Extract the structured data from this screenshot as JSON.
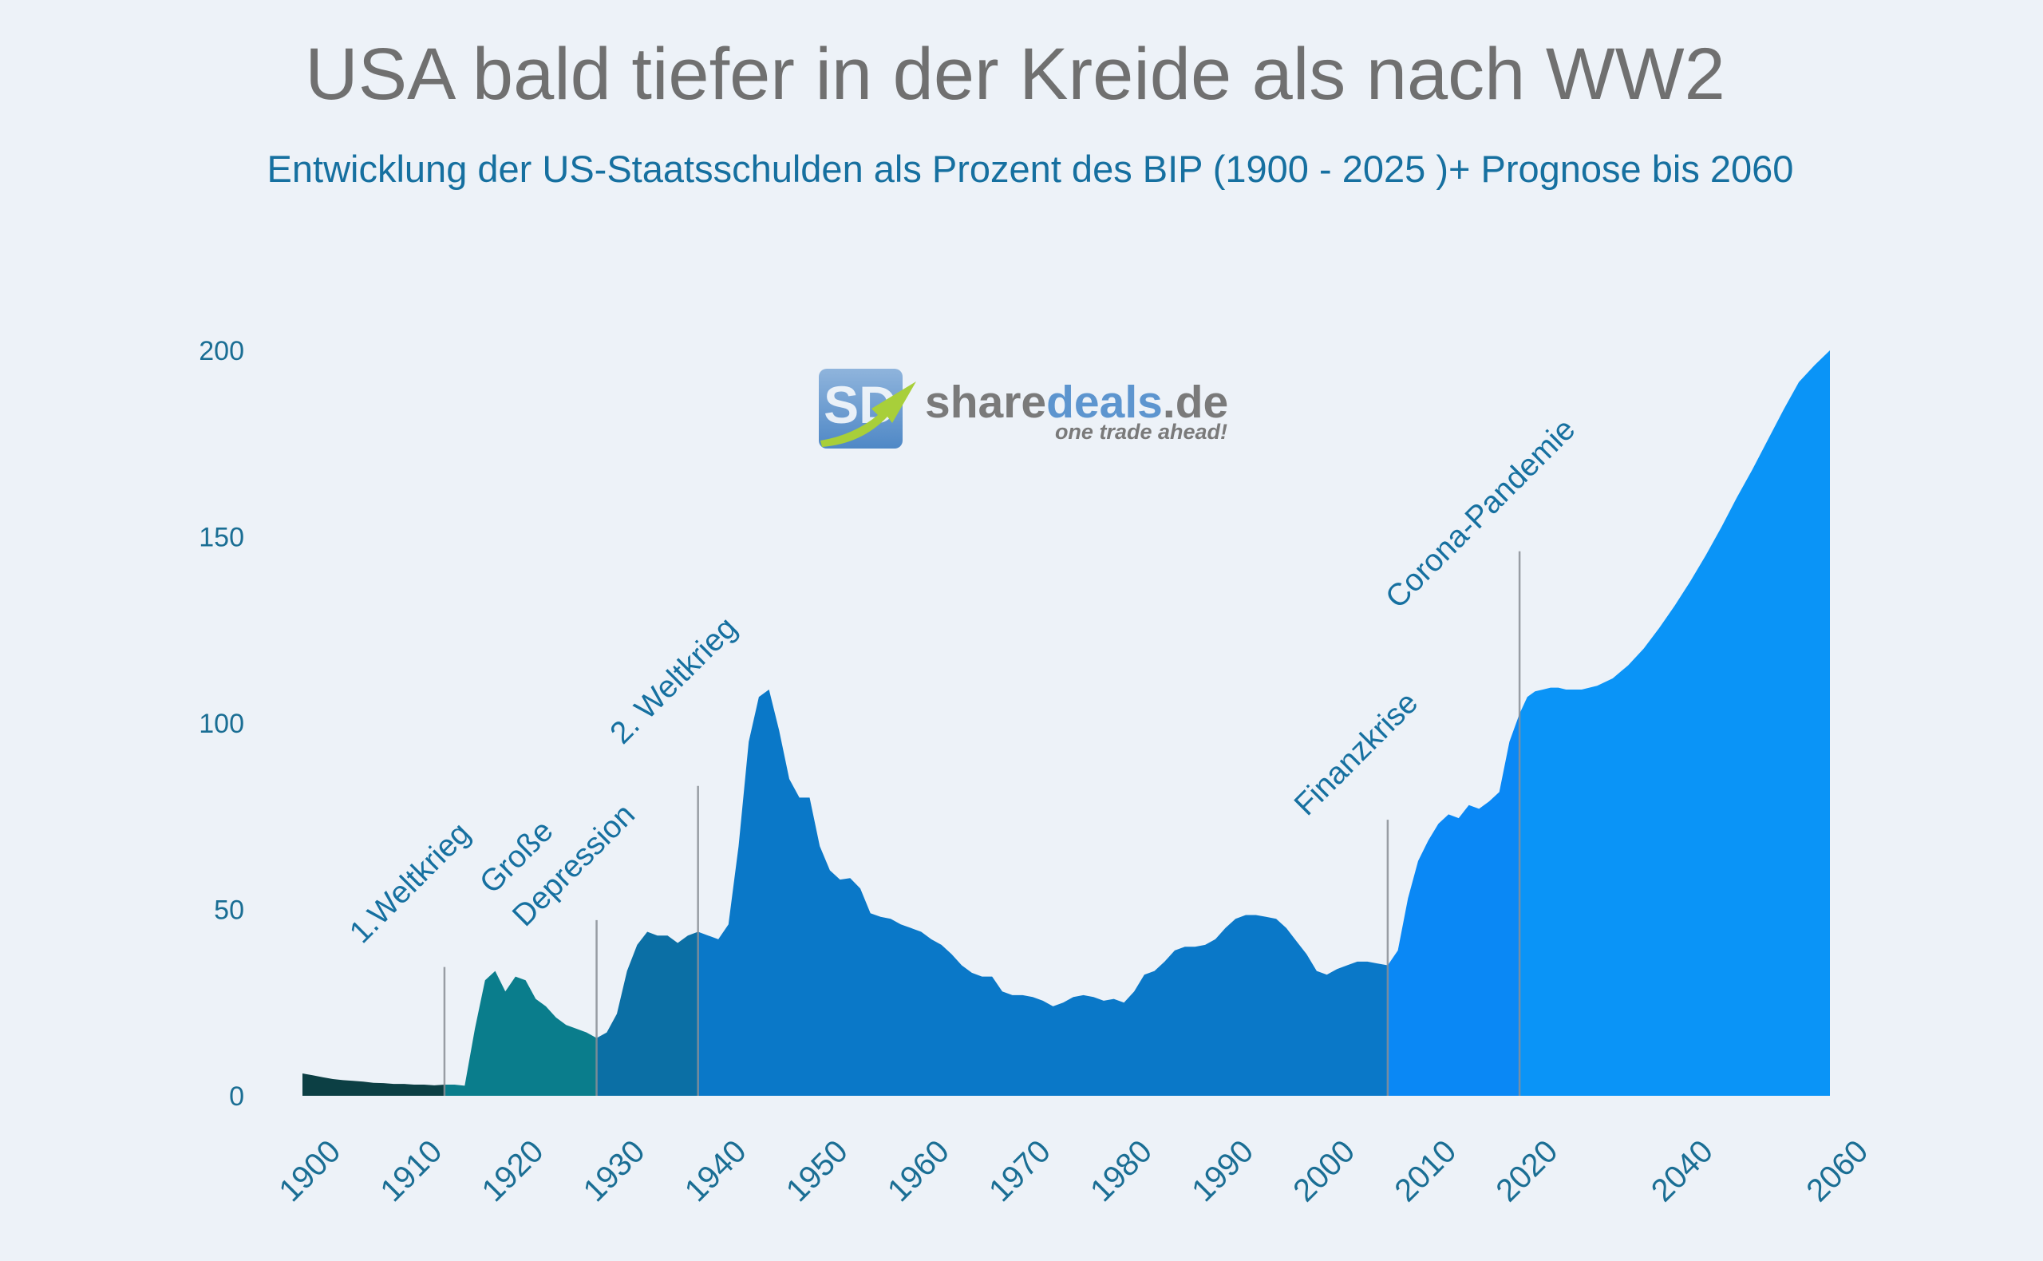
{
  "chart_data": {
    "type": "area",
    "title": "USA bald tiefer in der Kreide als nach WW2",
    "subtitle": "Entwicklung der US-Staatsschulden als Prozent des BIP (1900 - 2025 )+ Prognose bis 2060",
    "watermark": {
      "logo": "SD",
      "parts": [
        "share",
        "deals",
        ".de"
      ],
      "slogan": "one trade ahead!"
    },
    "x": [
      1900,
      1901,
      1902,
      1903,
      1904,
      1905,
      1906,
      1907,
      1908,
      1909,
      1910,
      1911,
      1912,
      1913,
      1914,
      1915,
      1916,
      1917,
      1918,
      1919,
      1920,
      1921,
      1922,
      1923,
      1924,
      1925,
      1926,
      1927,
      1928,
      1929,
      1930,
      1931,
      1932,
      1933,
      1934,
      1935,
      1936,
      1937,
      1938,
      1939,
      1940,
      1941,
      1942,
      1943,
      1944,
      1945,
      1946,
      1947,
      1948,
      1949,
      1950,
      1951,
      1952,
      1953,
      1954,
      1955,
      1956,
      1957,
      1958,
      1959,
      1960,
      1961,
      1962,
      1963,
      1964,
      1965,
      1966,
      1967,
      1968,
      1969,
      1970,
      1971,
      1972,
      1973,
      1974,
      1975,
      1976,
      1977,
      1978,
      1979,
      1980,
      1981,
      1982,
      1983,
      1984,
      1985,
      1986,
      1987,
      1988,
      1989,
      1990,
      1991,
      1992,
      1993,
      1994,
      1995,
      1996,
      1997,
      1998,
      1999,
      2000,
      2001,
      2002,
      2003,
      2004,
      2005,
      2006,
      2007,
      2008,
      2009,
      2010,
      2011,
      2012,
      2013,
      2014,
      2015,
      2016,
      2017,
      2018,
      2019,
      2020,
      2021,
      2022,
      2023,
      2024,
      2025,
      2026,
      2027,
      2028,
      2029,
      2030,
      2032,
      2034,
      2036,
      2038,
      2040,
      2042,
      2044,
      2046,
      2048,
      2050,
      2052,
      2054,
      2056,
      2058,
      2060
    ],
    "series": [
      {
        "colors": [
          "#0c3f44",
          "#0a7d8c",
          "#0b6fa5",
          "#0a78c8",
          "#0a88f5",
          "#0a94f7"
        ],
        "values": [
          6,
          5.5,
          5,
          4.5,
          4.2,
          4,
          3.8,
          3.5,
          3.4,
          3.2,
          3.2,
          3,
          3,
          2.8,
          3,
          3,
          2.7,
          18,
          31,
          33.5,
          28,
          32,
          31,
          26,
          24,
          21,
          19,
          18,
          17,
          15.5,
          17,
          22,
          33.5,
          40.5,
          44,
          43,
          43,
          41,
          43,
          44,
          43,
          42,
          46,
          67,
          95,
          107,
          109,
          98,
          85,
          80,
          80,
          67,
          60.5,
          58,
          58.4,
          55.6,
          49,
          48,
          47.5,
          46,
          45,
          44,
          42,
          40.5,
          38,
          35,
          33,
          32,
          32,
          28,
          27,
          27,
          26.5,
          25.5,
          24,
          25,
          26.5,
          27,
          26.5,
          25.5,
          26,
          25,
          28,
          32.5,
          33.5,
          36,
          39,
          40,
          40,
          40.5,
          42,
          45,
          47.5,
          48.5,
          48.5,
          48,
          47.5,
          45,
          41.5,
          38,
          33.5,
          32.5,
          34,
          35,
          36,
          36,
          35.5,
          35,
          39,
          53,
          63,
          68.5,
          73,
          75.5,
          74.5,
          78,
          77,
          79,
          81.5,
          95,
          102.5,
          107,
          108.5,
          109,
          109.5,
          109.5,
          109,
          109,
          109,
          109.5,
          110,
          112,
          115.5,
          120,
          125.5,
          131.5,
          138,
          145,
          152.5,
          160.5,
          168,
          176,
          184,
          191.5,
          196,
          200
        ]
      }
    ],
    "annotations": [
      {
        "x": 1914,
        "label_lines": [
          "1.Weltkrieg"
        ]
      },
      {
        "x": 1929,
        "label_lines": [
          "Große",
          "Depression"
        ]
      },
      {
        "x": 1939,
        "label_lines": [
          "2. Weltkrieg"
        ]
      },
      {
        "x": 2007,
        "label_lines": [
          "Finanzkrise"
        ]
      },
      {
        "x": 2020,
        "label_lines": [
          "Corona-Pandemie"
        ]
      }
    ],
    "xlim": [
      1900,
      2060
    ],
    "xticks": [
      1900,
      1910,
      1920,
      1930,
      1940,
      1950,
      1960,
      1970,
      1980,
      1990,
      2000,
      2010,
      2020,
      2040,
      2060
    ],
    "ylim": [
      0,
      200
    ],
    "yticks": [
      0,
      50,
      100,
      150,
      200
    ],
    "grid": false
  }
}
